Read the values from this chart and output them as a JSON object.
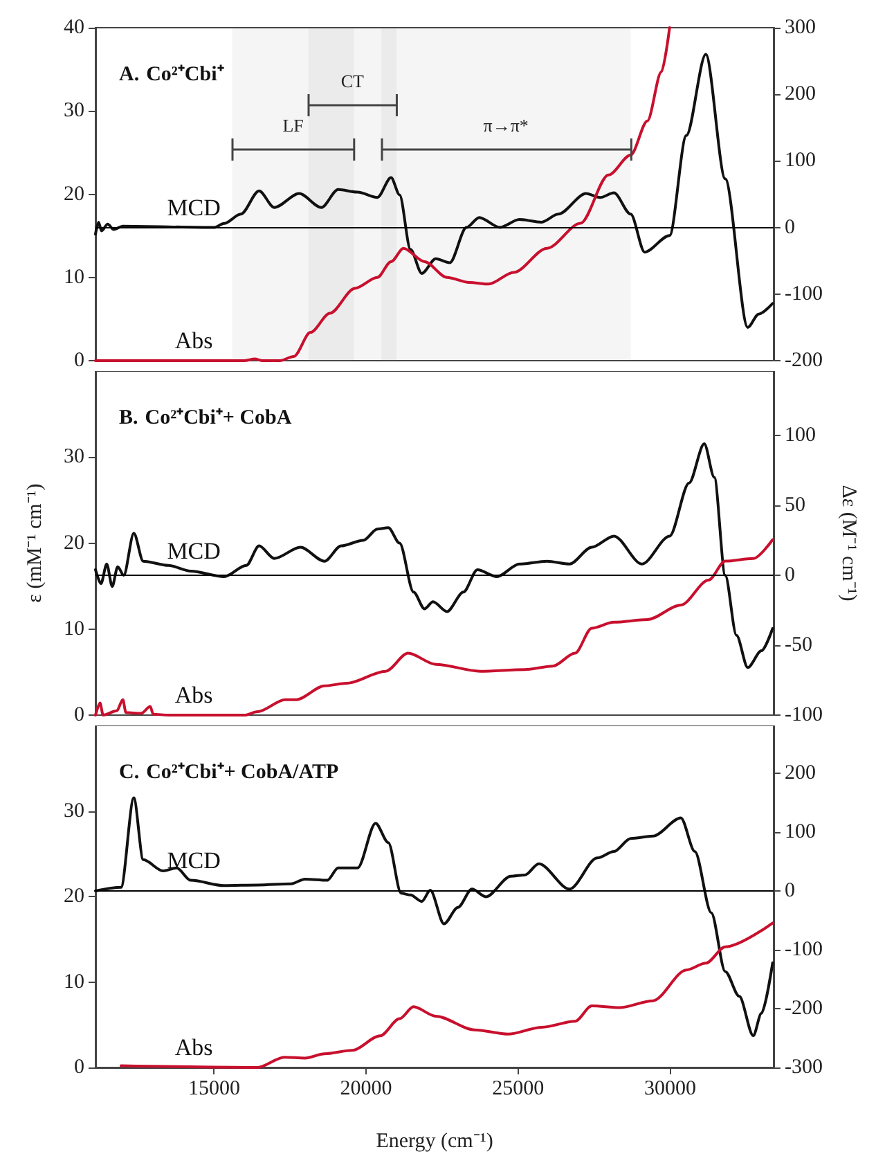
{
  "chart_data": [
    {
      "type": "line",
      "title": "A. Co²⁺Cbi⁺",
      "xlim": [
        11100,
        33400
      ],
      "xticks": [
        15000,
        20000,
        25000,
        30000
      ],
      "ylim": [
        0,
        40
      ],
      "yticks": [
        0,
        10,
        20,
        30,
        40
      ],
      "y2lim": [
        -200,
        300
      ],
      "y2ticks": [
        -200,
        -100,
        0,
        100,
        200,
        300
      ],
      "tick_labels": "y",
      "ref_lines": [
        {
          "axis": "y2",
          "value": 0,
          "color": "#000000"
        }
      ],
      "bands": [
        {
          "axis": "x",
          "from": 15600,
          "to": 19600,
          "label": "LF"
        },
        {
          "axis": "x",
          "from": 18100,
          "to": 21000,
          "label": "CT"
        },
        {
          "axis": "x",
          "from": 20500,
          "to": 28700,
          "label": "π→π*"
        }
      ],
      "series": [
        {
          "name": "MCD",
          "color": "#111111",
          "axis": "y2",
          "x": [
            11100,
            11200,
            11300,
            11500,
            11700,
            12000,
            15000,
            15330,
            15880,
            16480,
            16980,
            17800,
            18530,
            19080,
            19720,
            20370,
            20820,
            21100,
            21460,
            21830,
            22290,
            22750,
            23300,
            23720,
            24400,
            25040,
            25770,
            26320,
            27230,
            27690,
            28150,
            28700,
            29160,
            29980,
            30530,
            31170,
            31810,
            32550,
            32910,
            33370
          ],
          "values": [
            -10,
            8,
            -5,
            5,
            -3,
            2,
            0,
            6,
            20,
            55,
            30,
            51,
            30,
            57,
            53,
            45,
            75,
            49,
            -33,
            -69,
            -47,
            -53,
            0,
            15,
            0,
            12,
            8,
            20,
            51,
            45,
            52,
            20,
            -37,
            -12,
            138,
            260,
            73,
            -150,
            -130,
            -114
          ]
        },
        {
          "name": "Abs",
          "color": "#c8102e",
          "x": [
            11100,
            16000,
            16340,
            16600,
            17160,
            17620,
            18170,
            18810,
            19630,
            20370,
            20820,
            21230,
            21920,
            22660,
            23390,
            24030,
            24850,
            25950,
            27050,
            27970,
            28700,
            29250,
            29710,
            29980
          ],
          "values": [
            0,
            0,
            0.2,
            0,
            0,
            0.5,
            3.4,
            5.7,
            8.7,
            10,
            11.9,
            13.5,
            11.9,
            10,
            9.4,
            9.2,
            10.6,
            13.5,
            16.5,
            22.3,
            24.7,
            28.8,
            34.7,
            40
          ]
        }
      ]
    },
    {
      "type": "line",
      "title": "B. Co²⁺Cbi⁺+ CobA",
      "ylabel": "ε (mM⁻¹ cm⁻¹)",
      "y2label": "Δε (M⁻¹ cm⁻¹)",
      "xlim": [
        11100,
        33400
      ],
      "xticks": [
        15000,
        20000,
        25000,
        30000
      ],
      "ylim": [
        0,
        40
      ],
      "yticks": [
        0,
        10,
        20,
        30
      ],
      "y2lim": [
        -100,
        146
      ],
      "y2ticks": [
        -100,
        -50,
        0,
        50,
        100
      ],
      "tick_labels": "y",
      "ref_lines": [
        {
          "axis": "y2",
          "value": 0,
          "color": "#000000"
        }
      ],
      "series": [
        {
          "name": "MCD",
          "color": "#111111",
          "axis": "y2",
          "x": [
            11100,
            11280,
            11470,
            11650,
            11830,
            12030,
            12360,
            12670,
            13500,
            14230,
            15330,
            16060,
            16480,
            16980,
            17840,
            18630,
            19180,
            19910,
            20370,
            20730,
            21100,
            21560,
            21920,
            22200,
            22660,
            23200,
            23660,
            24300,
            25040,
            25950,
            26690,
            27420,
            28150,
            29070,
            29980,
            30620,
            31120,
            31450,
            31810,
            32180,
            32550,
            33000,
            33370
          ],
          "values": [
            4,
            -6,
            8,
            -8,
            6,
            0,
            30,
            10,
            7,
            3,
            -1,
            7,
            21,
            12,
            20,
            10,
            21,
            25,
            33,
            34,
            23,
            -12,
            -24,
            -19,
            -26,
            -12,
            4,
            -1,
            8,
            10,
            8,
            20,
            28,
            8,
            28,
            66,
            94,
            70,
            0,
            -43,
            -66,
            -54,
            -38
          ]
        },
        {
          "name": "Abs",
          "color": "#c8102e",
          "x": [
            11100,
            11250,
            11350,
            11800,
            12000,
            12100,
            12600,
            12900,
            13000,
            13500,
            16000,
            16430,
            17340,
            17710,
            18630,
            19360,
            20640,
            21380,
            22290,
            23750,
            25220,
            26140,
            26870,
            27420,
            28150,
            29250,
            30350,
            31260,
            31810,
            32730,
            33370
          ],
          "values": [
            0,
            1.4,
            0,
            0.5,
            1.8,
            0.3,
            0.2,
            1,
            0.1,
            0,
            0,
            0.4,
            1.8,
            1.8,
            3.4,
            3.7,
            5.1,
            7.2,
            5.9,
            5.1,
            5.3,
            5.7,
            7.2,
            10.1,
            10.8,
            11.1,
            12.8,
            15.7,
            17.9,
            18.2,
            20.4
          ]
        }
      ]
    },
    {
      "type": "line",
      "title": "C. Co²⁺Cbi⁺+ CobA/ATP",
      "xlabel": "Energy (cm⁻¹)",
      "xlim": [
        11100,
        33400
      ],
      "xticks": [
        15000,
        20000,
        25000,
        30000
      ],
      "ylim": [
        0,
        40
      ],
      "yticks": [
        0,
        10,
        20,
        30
      ],
      "y2lim": [
        -300,
        281
      ],
      "y2ticks": [
        -300,
        -200,
        -100,
        0,
        100,
        200
      ],
      "ref_lines": [
        {
          "axis": "y2",
          "value": 0,
          "color": "#000000"
        }
      ],
      "series": [
        {
          "name": "MCD",
          "color": "#111111",
          "axis": "y2",
          "x": [
            11100,
            11940,
            12360,
            12670,
            13320,
            13770,
            14230,
            15330,
            16430,
            17530,
            17990,
            18720,
            19080,
            19720,
            20310,
            20730,
            21150,
            21460,
            21830,
            22110,
            22560,
            23020,
            23480,
            23940,
            24760,
            25220,
            25680,
            26690,
            27600,
            28150,
            28700,
            29430,
            30350,
            30810,
            31350,
            31810,
            32270,
            32730,
            33000,
            33370
          ],
          "values": [
            0,
            6,
            158,
            53,
            34,
            39,
            18,
            9,
            10,
            12,
            20,
            18,
            39,
            39,
            115,
            82,
            -4,
            -7,
            -18,
            1,
            -56,
            -28,
            3,
            -10,
            25,
            27,
            46,
            3,
            56,
            67,
            89,
            93,
            124,
            67,
            -37,
            -137,
            -179,
            -246,
            -208,
            -122
          ]
        },
        {
          "name": "Abs",
          "color": "#c8102e",
          "x": [
            11940,
            16430,
            17310,
            17990,
            18630,
            19540,
            20460,
            21100,
            21560,
            22290,
            23570,
            24670,
            25770,
            26870,
            27420,
            28330,
            29430,
            30530,
            31170,
            31810,
            33370
          ],
          "values": [
            0.2,
            0,
            1.2,
            1.1,
            1.6,
            2,
            3.7,
            5.7,
            7.1,
            6,
            4.4,
            3.9,
            4.7,
            5.4,
            7.2,
            7,
            7.8,
            11.4,
            12.2,
            14.1,
            16.9
          ]
        }
      ]
    }
  ]
}
